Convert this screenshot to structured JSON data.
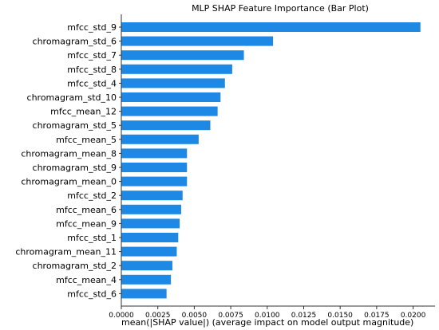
{
  "chart_data": {
    "type": "bar",
    "orientation": "horizontal",
    "title": "MLP SHAP Feature Importance (Bar Plot)",
    "xlabel": "mean(|SHAP value|) (average impact on model output magnitude)",
    "ylabel": "",
    "categories": [
      "mfcc_std_9",
      "chromagram_std_6",
      "mfcc_std_7",
      "mfcc_std_8",
      "mfcc_std_4",
      "chromagram_std_10",
      "mfcc_mean_12",
      "chromagram_std_5",
      "mfcc_mean_5",
      "chromagram_mean_8",
      "chromagram_std_9",
      "chromagram_mean_0",
      "mfcc_std_2",
      "mfcc_mean_6",
      "mfcc_mean_9",
      "mfcc_std_1",
      "chromagram_mean_11",
      "chromagram_std_2",
      "mfcc_mean_4",
      "mfcc_std_6"
    ],
    "values": [
      0.0205,
      0.0104,
      0.0084,
      0.0076,
      0.0071,
      0.0068,
      0.0066,
      0.0061,
      0.0053,
      0.0045,
      0.0045,
      0.0045,
      0.0042,
      0.0041,
      0.004,
      0.0039,
      0.0038,
      0.0035,
      0.0034,
      0.0031
    ],
    "xlim": [
      0,
      0.0215
    ],
    "xticks": [
      "0.0000",
      "0.0025",
      "0.0050",
      "0.0075",
      "0.0100",
      "0.0125",
      "0.0150",
      "0.0175",
      "0.0200"
    ],
    "grid": false,
    "bar_color": "#1E88E5",
    "axis_color": "#333333"
  }
}
